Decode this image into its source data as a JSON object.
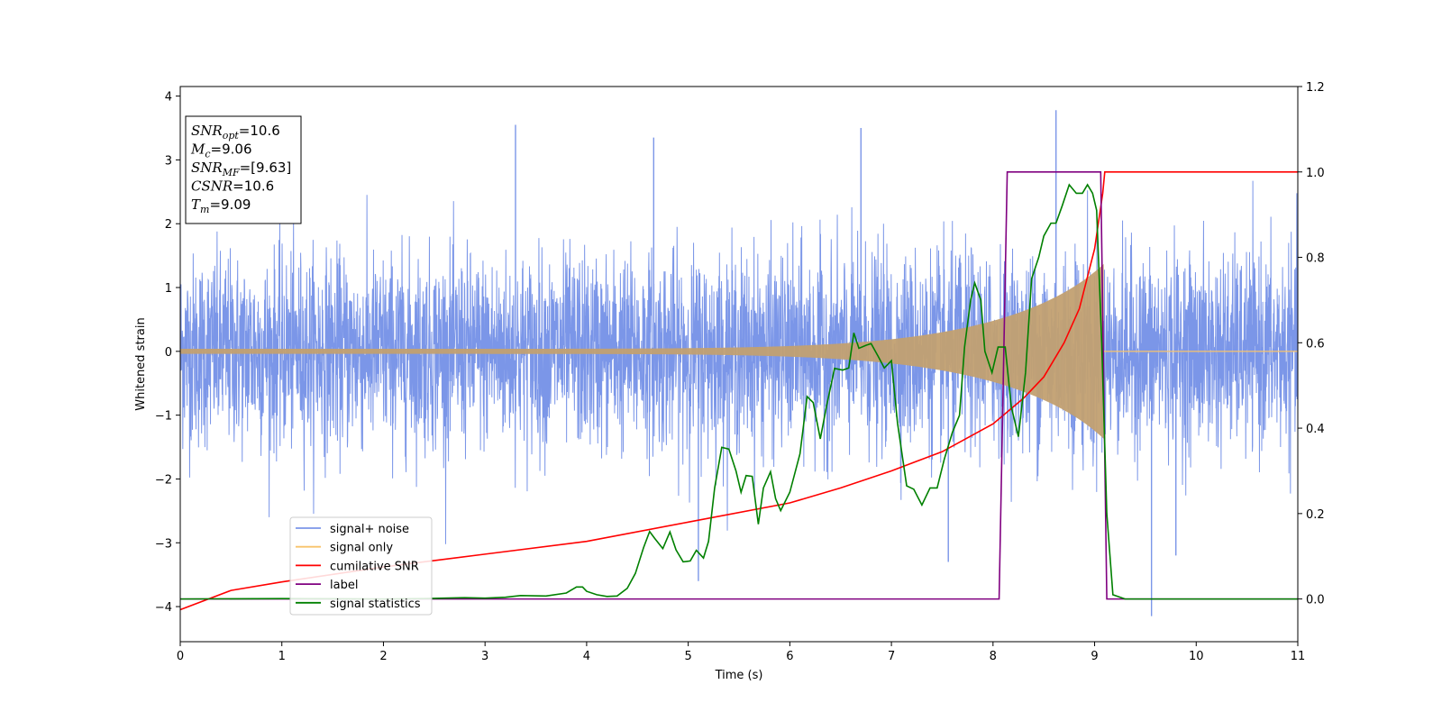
{
  "chart_data": {
    "type": "line",
    "xlabel": "Time (s)",
    "ylabel": "Whitened strain",
    "xlim": [
      0,
      11
    ],
    "ylim_left": [
      -4.55,
      4.15
    ],
    "ylim_right": [
      -0.1,
      1.2
    ],
    "x_ticks": [
      "0",
      "1",
      "2",
      "3",
      "4",
      "5",
      "6",
      "7",
      "8",
      "9",
      "10",
      "11"
    ],
    "y_ticks_left": [
      "−4",
      "−3",
      "−2",
      "−1",
      "0",
      "1",
      "2",
      "3",
      "4"
    ],
    "y_ticks_right": [
      "0.0",
      "0.2",
      "0.4",
      "0.6",
      "0.8",
      "1.0",
      "1.2"
    ],
    "legend_position": "lower-left",
    "annotation": [
      {
        "sym": "SNR",
        "sub": "opt",
        "value": "=10.6"
      },
      {
        "sym": "M",
        "sub": "c",
        "value": "=9.06"
      },
      {
        "sym": "SNR",
        "sub": "MF",
        "value": "=[9.63]"
      },
      {
        "sym": "CSNR",
        "sub": "",
        "value": "=10.6"
      },
      {
        "sym": "T",
        "sub": "m",
        "value": "=9.09"
      }
    ],
    "series": [
      {
        "name": "signal+ noise",
        "color": "#7b96e8",
        "axis": "left",
        "description_values": {
          "noise_sigma": 0.75,
          "typical_max": 3.2,
          "typical_min": -3.2,
          "extremes": [
            [
              3.3,
              3.55
            ],
            [
              4.66,
              3.35
            ],
            [
              5.1,
              -3.6
            ],
            [
              6.7,
              3.5
            ],
            [
              7.56,
              -3.3
            ],
            [
              8.62,
              3.78
            ],
            [
              9.56,
              -4.15
            ],
            [
              9.8,
              -3.2
            ]
          ]
        }
      },
      {
        "name": "signal only",
        "color": "#f8c36b",
        "axis": "left",
        "chirp": {
          "t_start": 0,
          "t_merge": 9.09,
          "amp_start": 0.04,
          "amp_end": 1.25
        }
      },
      {
        "name": "cumilative SNR",
        "color": "#ff0000",
        "axis": "right",
        "points": [
          [
            0,
            -0.025
          ],
          [
            0.5,
            0.02
          ],
          [
            1,
            0.04
          ],
          [
            2,
            0.075
          ],
          [
            3,
            0.105
          ],
          [
            4,
            0.135
          ],
          [
            5,
            0.18
          ],
          [
            6,
            0.225
          ],
          [
            6.5,
            0.26
          ],
          [
            7,
            0.3
          ],
          [
            7.5,
            0.345
          ],
          [
            8,
            0.41
          ],
          [
            8.3,
            0.47
          ],
          [
            8.5,
            0.52
          ],
          [
            8.7,
            0.6
          ],
          [
            8.85,
            0.68
          ],
          [
            9.0,
            0.82
          ],
          [
            9.08,
            0.95
          ],
          [
            9.1,
            1.0
          ],
          [
            11,
            1.0
          ]
        ]
      },
      {
        "name": "label",
        "color": "#800080",
        "axis": "right",
        "points": [
          [
            0,
            0
          ],
          [
            8.06,
            0
          ],
          [
            8.14,
            1.0
          ],
          [
            9.06,
            1.0
          ],
          [
            9.12,
            0
          ],
          [
            11,
            0
          ]
        ]
      },
      {
        "name": "signal statistics",
        "color": "#008000",
        "axis": "right",
        "points": [
          [
            0,
            0
          ],
          [
            1,
            0.001
          ],
          [
            2,
            0
          ],
          [
            2.4,
            0.001
          ],
          [
            2.8,
            0.003
          ],
          [
            3.0,
            0.002
          ],
          [
            3.2,
            0.004
          ],
          [
            3.35,
            0.008
          ],
          [
            3.6,
            0.007
          ],
          [
            3.8,
            0.014
          ],
          [
            3.9,
            0.028
          ],
          [
            3.96,
            0.028
          ],
          [
            4.0,
            0.018
          ],
          [
            4.1,
            0.01
          ],
          [
            4.2,
            0.006
          ],
          [
            4.3,
            0.007
          ],
          [
            4.4,
            0.025
          ],
          [
            4.48,
            0.06
          ],
          [
            4.56,
            0.12
          ],
          [
            4.62,
            0.158
          ],
          [
            4.67,
            0.142
          ],
          [
            4.75,
            0.118
          ],
          [
            4.82,
            0.157
          ],
          [
            4.88,
            0.115
          ],
          [
            4.95,
            0.087
          ],
          [
            5.02,
            0.089
          ],
          [
            5.08,
            0.114
          ],
          [
            5.15,
            0.096
          ],
          [
            5.2,
            0.135
          ],
          [
            5.26,
            0.26
          ],
          [
            5.33,
            0.355
          ],
          [
            5.4,
            0.351
          ],
          [
            5.47,
            0.3
          ],
          [
            5.52,
            0.25
          ],
          [
            5.57,
            0.289
          ],
          [
            5.63,
            0.287
          ],
          [
            5.69,
            0.175
          ],
          [
            5.74,
            0.26
          ],
          [
            5.81,
            0.298
          ],
          [
            5.86,
            0.235
          ],
          [
            5.91,
            0.207
          ],
          [
            6.0,
            0.25
          ],
          [
            6.1,
            0.34
          ],
          [
            6.17,
            0.474
          ],
          [
            6.23,
            0.46
          ],
          [
            6.3,
            0.375
          ],
          [
            6.36,
            0.45
          ],
          [
            6.44,
            0.54
          ],
          [
            6.52,
            0.536
          ],
          [
            6.58,
            0.541
          ],
          [
            6.63,
            0.623
          ],
          [
            6.68,
            0.587
          ],
          [
            6.75,
            0.594
          ],
          [
            6.8,
            0.598
          ],
          [
            6.87,
            0.568
          ],
          [
            6.93,
            0.541
          ],
          [
            7.0,
            0.558
          ],
          [
            7.06,
            0.412
          ],
          [
            7.15,
            0.265
          ],
          [
            7.22,
            0.257
          ],
          [
            7.3,
            0.22
          ],
          [
            7.38,
            0.26
          ],
          [
            7.45,
            0.26
          ],
          [
            7.52,
            0.327
          ],
          [
            7.6,
            0.39
          ],
          [
            7.67,
            0.43
          ],
          [
            7.72,
            0.59
          ],
          [
            7.78,
            0.7
          ],
          [
            7.82,
            0.74
          ],
          [
            7.88,
            0.7
          ],
          [
            7.92,
            0.58
          ],
          [
            7.99,
            0.53
          ],
          [
            8.05,
            0.59
          ],
          [
            8.12,
            0.59
          ],
          [
            8.18,
            0.45
          ],
          [
            8.25,
            0.38
          ],
          [
            8.32,
            0.53
          ],
          [
            8.38,
            0.75
          ],
          [
            8.45,
            0.8
          ],
          [
            8.5,
            0.85
          ],
          [
            8.57,
            0.88
          ],
          [
            8.62,
            0.88
          ],
          [
            8.68,
            0.92
          ],
          [
            8.75,
            0.97
          ],
          [
            8.82,
            0.95
          ],
          [
            8.88,
            0.95
          ],
          [
            8.93,
            0.97
          ],
          [
            8.98,
            0.95
          ],
          [
            9.02,
            0.91
          ],
          [
            9.07,
            0.6
          ],
          [
            9.12,
            0.2
          ],
          [
            9.18,
            0.01
          ],
          [
            9.3,
            0
          ],
          [
            11,
            0
          ]
        ]
      }
    ]
  }
}
